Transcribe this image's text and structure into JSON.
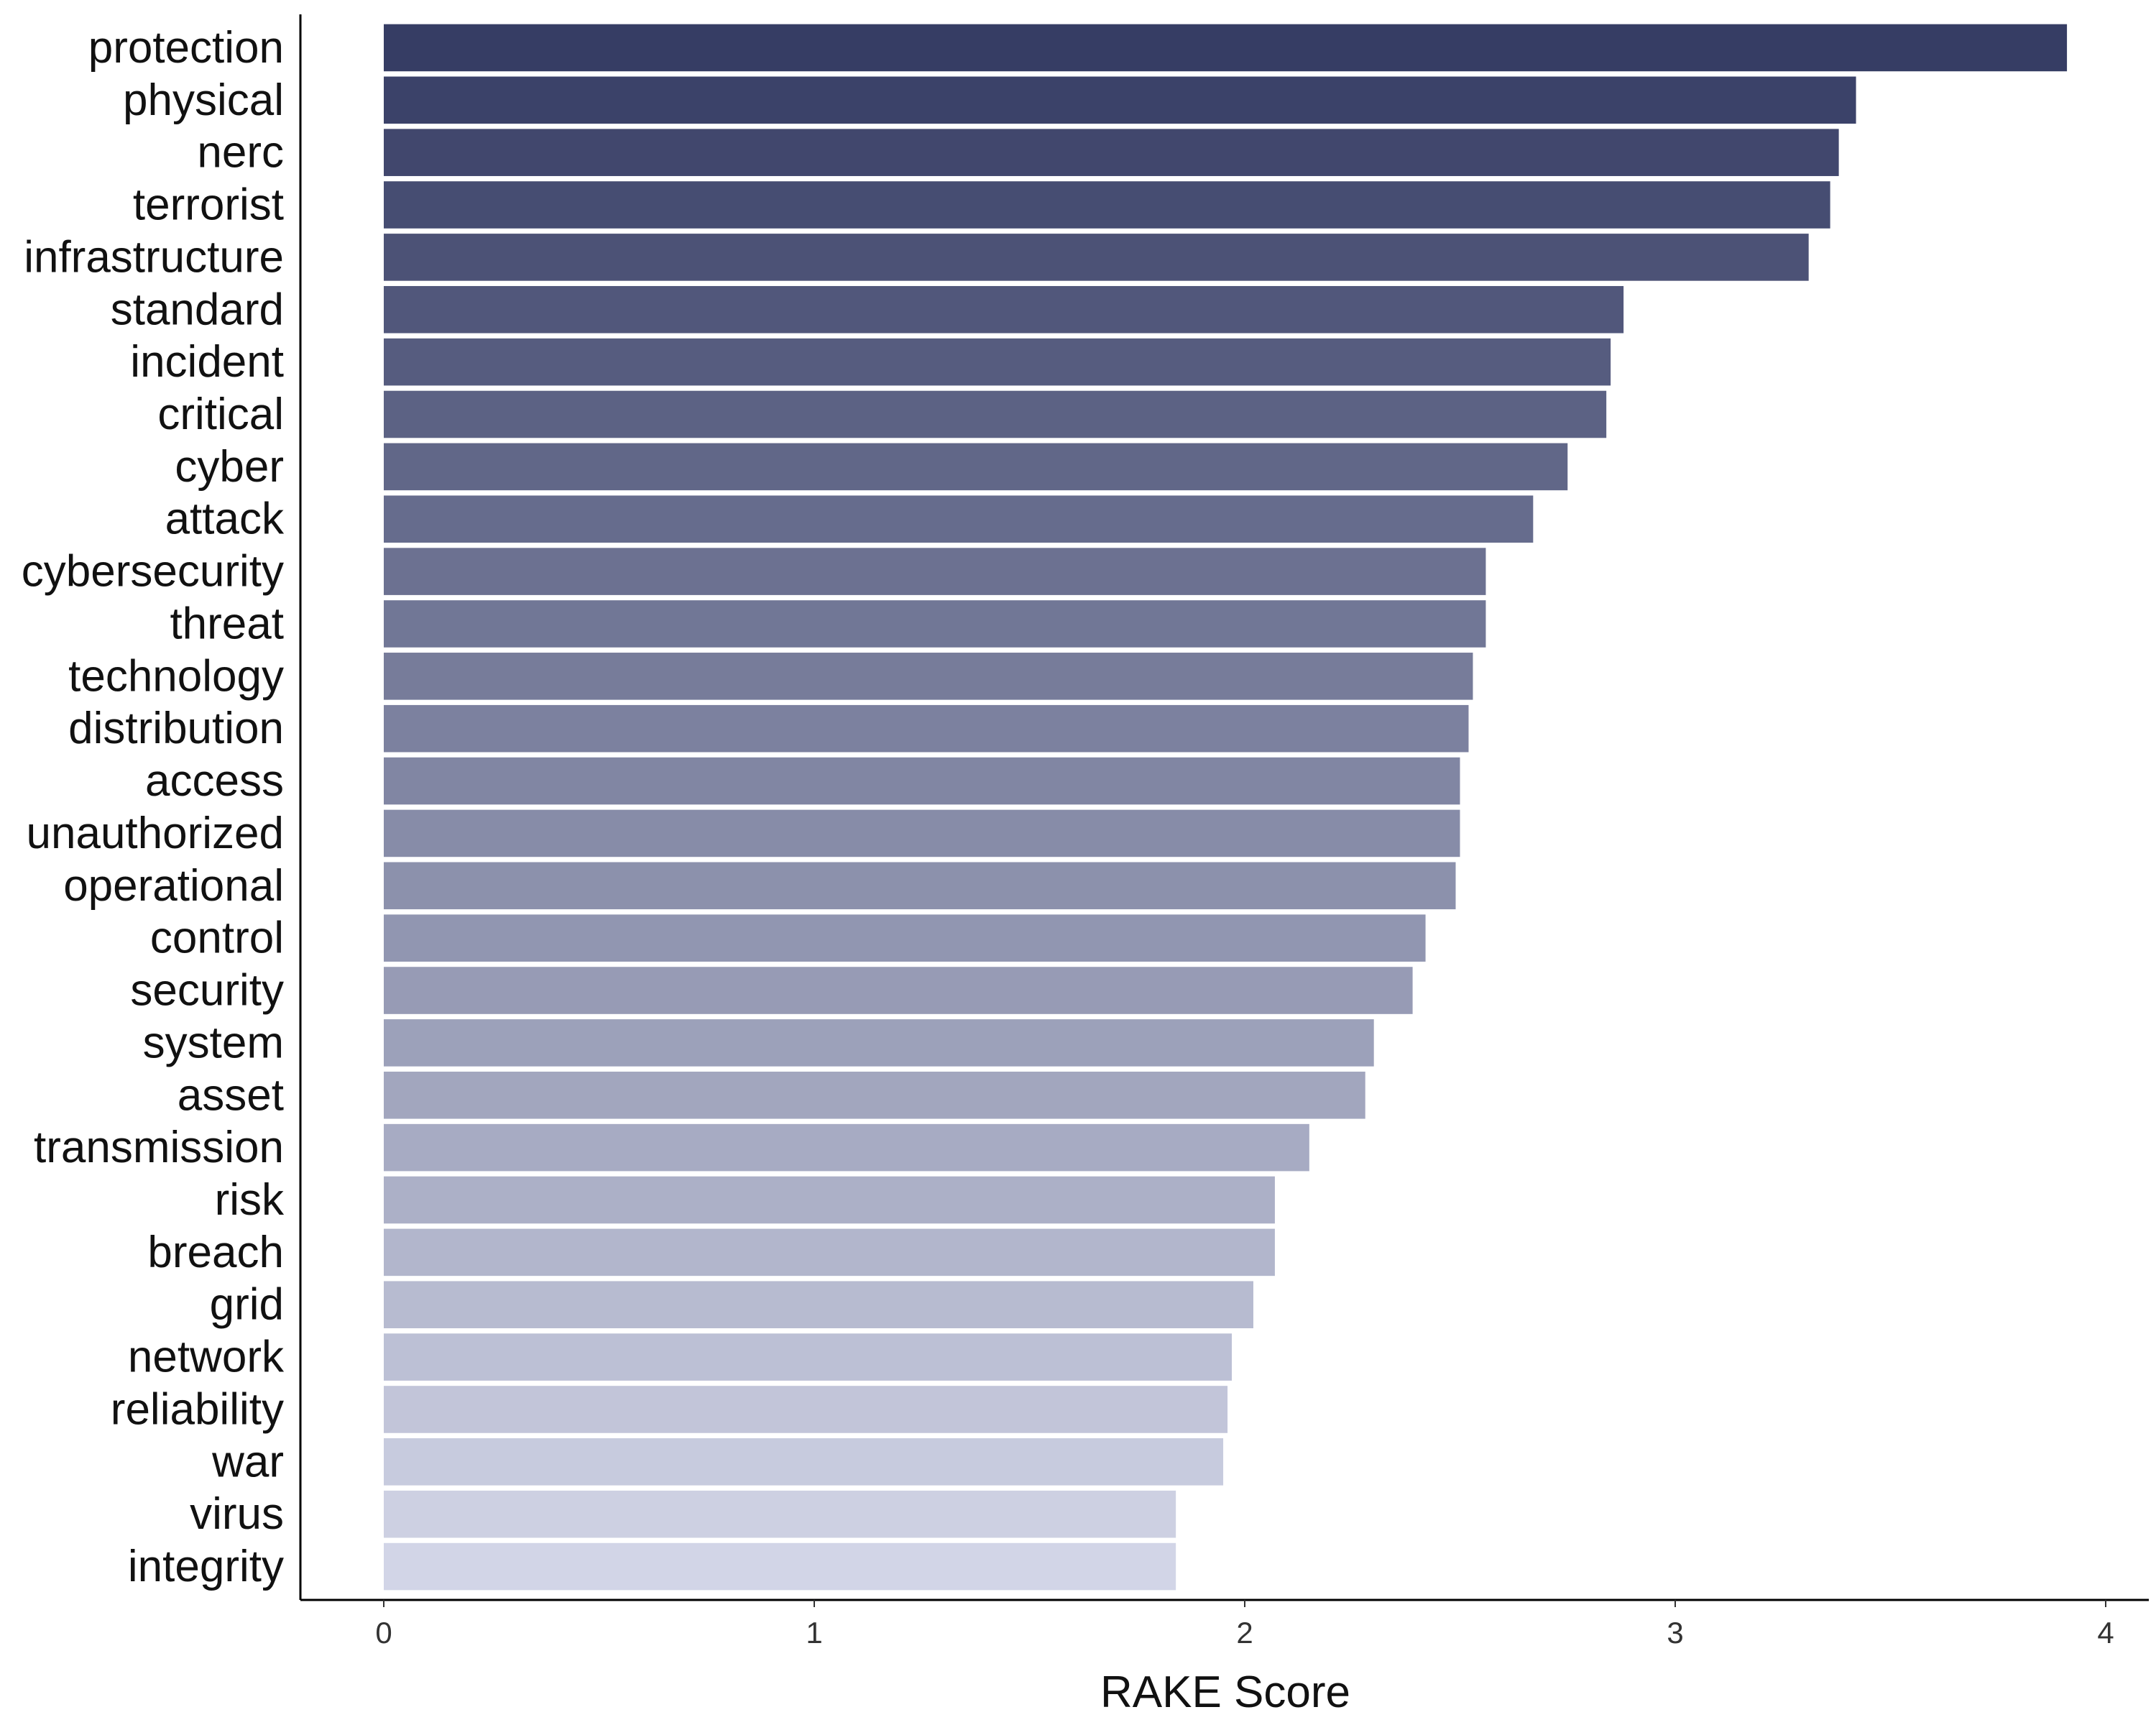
{
  "chart_data": {
    "type": "bar",
    "orientation": "horizontal",
    "categories": [
      "protection",
      "physical",
      "nerc",
      "terrorist",
      "infrastructure",
      "standard",
      "incident",
      "critical",
      "cyber",
      "attack",
      "cybersecurity",
      "threat",
      "technology",
      "distribution",
      "access",
      "unauthorized",
      "operational",
      "control",
      "security",
      "system",
      "asset",
      "transmission",
      "risk",
      "breach",
      "grid",
      "network",
      "reliability",
      "war",
      "virus",
      "integrity"
    ],
    "values": [
      3.91,
      3.42,
      3.38,
      3.36,
      3.31,
      2.88,
      2.85,
      2.84,
      2.75,
      2.67,
      2.56,
      2.56,
      2.53,
      2.52,
      2.5,
      2.5,
      2.49,
      2.42,
      2.39,
      2.3,
      2.28,
      2.15,
      2.07,
      2.07,
      2.02,
      1.97,
      1.96,
      1.95,
      1.84,
      1.84
    ],
    "xlabel": "RAKE Score",
    "ylabel": "",
    "title": "",
    "xlim": [
      0,
      4
    ],
    "xticks": [
      "0",
      "1",
      "2",
      "3",
      "4"
    ],
    "grid": false,
    "legend": "none",
    "colors": {
      "darkest": "#363d64",
      "lightest": "#d2d5e7"
    }
  }
}
